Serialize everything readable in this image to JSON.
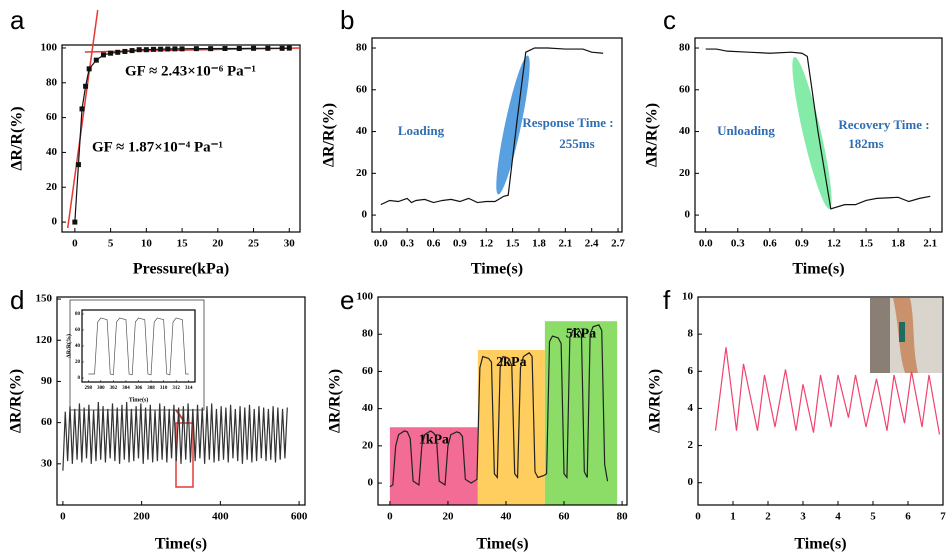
{
  "chart_data": [
    {
      "type": "line",
      "panel": "a",
      "xlabel": "Pressure(kPa)",
      "ylabel": "ΔR/R(%)",
      "color": "#111111",
      "marker": "square",
      "x": [
        0,
        0.5,
        1,
        1.5,
        2,
        3,
        4,
        5,
        6,
        7,
        8,
        9,
        10,
        11,
        12,
        13,
        14,
        15,
        17,
        19,
        21,
        23,
        25,
        27,
        29,
        30
      ],
      "values": [
        0,
        33,
        65,
        78,
        88,
        93,
        96,
        97,
        97.5,
        98,
        98.5,
        99,
        99,
        99.2,
        99.3,
        99.4,
        99.5,
        99.5,
        99.6,
        99.6,
        99.7,
        99.7,
        99.8,
        99.8,
        99.8,
        99.9
      ],
      "fits": [
        {
          "color": "#e53935",
          "x": [
            -1,
            3.2
          ],
          "values": [
            -3.4,
            121.8
          ]
        },
        {
          "color": "#e53935",
          "x": [
            1.4,
            31.5
          ],
          "values": [
            97.7,
            100
          ]
        }
      ],
      "annotations": [
        "GF ≈ 2.43×10⁻⁶ Pa⁻¹",
        "GF ≈ 1.87×10⁻⁴ Pa⁻¹"
      ],
      "xlim": [
        -1.8,
        31.5
      ],
      "ylim": [
        -5.7,
        101.7
      ],
      "xticks": [
        0,
        5,
        10,
        15,
        20,
        25,
        30
      ],
      "yticks": [
        0,
        20,
        40,
        60,
        80,
        100
      ]
    },
    {
      "type": "line",
      "panel": "b",
      "xlabel": "Time(s)",
      "ylabel": "ΔR/R(%)",
      "color": "#111111",
      "annotation_color": "#2f6eb5",
      "x": [
        0.0,
        0.1,
        0.2,
        0.3,
        0.35,
        0.4,
        0.5,
        0.6,
        0.7,
        0.8,
        0.9,
        1.0,
        1.1,
        1.2,
        1.3,
        1.4,
        1.45,
        1.55,
        1.65,
        1.75,
        1.9,
        2.1,
        2.3,
        2.4,
        2.53
      ],
      "values": [
        5,
        7,
        6.5,
        8,
        6,
        7,
        7.5,
        6,
        7,
        7.5,
        6.5,
        8,
        6,
        6.5,
        6.5,
        9,
        9.5,
        45,
        78,
        80,
        80,
        79.5,
        79.5,
        78,
        77.5
      ],
      "annotations": [
        "Loading",
        "Response Time :",
        "255ms"
      ],
      "xlim": [
        -0.1,
        2.745
      ],
      "ylim": [
        -8.1,
        84.8
      ],
      "xticks": [
        {
          "value": 0,
          "label": "0.0"
        },
        0.3,
        0.6,
        0.9,
        1.2,
        1.5,
        1.8,
        2.1,
        2.4,
        2.7
      ],
      "yticks": [
        0,
        20,
        40,
        60,
        80
      ]
    },
    {
      "type": "line",
      "panel": "c",
      "xlabel": "Time(s)",
      "ylabel": "ΔR/R(%)",
      "color": "#111111",
      "annotation_color": "#2f6eb5",
      "x": [
        0,
        0.1,
        0.2,
        0.4,
        0.6,
        0.8,
        0.9,
        0.95,
        1.05,
        1.17,
        1.3,
        1.4,
        1.5,
        1.6,
        1.8,
        1.9,
        2.0,
        2.1
      ],
      "values": [
        79.5,
        79.5,
        78.5,
        78,
        77.5,
        78,
        77.5,
        76,
        40,
        3,
        5,
        5,
        7,
        8,
        8.5,
        6.5,
        8,
        9
      ],
      "annotations": [
        "Unloading",
        "Recovery Time :",
        "182ms"
      ],
      "xlim": [
        -0.1,
        2.21
      ],
      "ylim": [
        -8.1,
        84.8
      ],
      "xticks": [
        {
          "value": 0,
          "label": "0.0"
        },
        0.3,
        0.6,
        0.9,
        1.2,
        1.5,
        1.8,
        2.1
      ],
      "yticks": [
        0,
        20,
        40,
        60,
        80
      ]
    },
    {
      "type": "line",
      "panel": "d",
      "xlabel": "Time(s)",
      "ylabel": "ΔR/R(%)",
      "color": "#333333",
      "x": [
        0,
        6,
        12,
        18,
        24,
        30,
        36,
        42,
        48,
        54,
        60,
        66,
        72,
        78,
        84,
        90,
        96,
        102,
        108,
        114,
        120,
        126,
        132,
        138,
        144,
        150,
        156,
        162,
        168,
        174,
        180,
        186,
        192,
        198,
        204,
        210,
        216,
        222,
        228,
        234,
        240,
        246,
        252,
        258,
        264,
        270,
        276,
        282,
        288,
        294,
        300,
        306,
        312,
        318,
        324,
        330,
        336,
        342,
        348,
        354,
        360,
        366,
        372,
        378,
        384,
        390,
        396,
        402,
        408,
        414,
        420,
        426,
        432,
        438,
        444,
        450,
        456,
        462,
        468,
        474,
        480,
        486,
        492,
        498,
        504,
        510,
        516,
        522,
        528,
        534,
        540,
        546,
        552,
        558,
        564,
        570
      ],
      "values": [
        25,
        68,
        32,
        72,
        30,
        70,
        33,
        74,
        31,
        71,
        34,
        73,
        30,
        69,
        32,
        75,
        33,
        72,
        31,
        70,
        34,
        74,
        32,
        71,
        30,
        73,
        33,
        75,
        31,
        70,
        32,
        72,
        34,
        74,
        30,
        71,
        33,
        73,
        31,
        69,
        32,
        74,
        33,
        72,
        31,
        70,
        34,
        73,
        32,
        71,
        30,
        72,
        33,
        74,
        31,
        70,
        32,
        73,
        34,
        71,
        30,
        72,
        33,
        74,
        31,
        70,
        32,
        72,
        33,
        71,
        31,
        73,
        34,
        70,
        32,
        72,
        30,
        71,
        33,
        73,
        31,
        70,
        32,
        72,
        34,
        71,
        32,
        70,
        33,
        72,
        31,
        71,
        33,
        70,
        34,
        71
      ],
      "xlim": [
        -15,
        615
      ],
      "ylim": [
        0,
        151.5
      ],
      "xticks": [
        0,
        200,
        400,
        600
      ],
      "yticks": [
        30,
        60,
        90,
        120,
        150
      ]
    },
    {
      "type": "line",
      "xlabel": "Time(s)",
      "ylabel": "ΔR/R(%)",
      "color": "#555555",
      "x": [
        298,
        299,
        299.5,
        300,
        301,
        301.5,
        302,
        302.5,
        303,
        304,
        304.5,
        305,
        305.5,
        306,
        307,
        307.5,
        308,
        308.5,
        309,
        310,
        310.5,
        311,
        311.5,
        312,
        313,
        313.5,
        314
      ],
      "values": [
        5,
        5,
        70,
        75,
        73,
        5,
        4,
        70,
        75,
        73,
        5,
        4,
        70,
        75,
        73,
        5,
        4,
        70,
        75,
        73,
        5,
        4,
        70,
        75,
        73,
        5,
        5
      ],
      "xlim": [
        297,
        315
      ],
      "ylim": [
        -5,
        85
      ],
      "xticks": [
        298,
        300,
        302,
        304,
        306,
        308,
        310,
        312,
        314
      ],
      "yticks": [
        0,
        20,
        40,
        60,
        80
      ]
    },
    {
      "type": "line",
      "panel": "e",
      "xlabel": "Time(s)",
      "ylabel": "ΔR/R(%)",
      "color": "#222222",
      "bands": [
        {
          "label": "1kPa",
          "color": "#f25c8a",
          "x": [
            0,
            30.3
          ],
          "top": 30
        },
        {
          "label": "2kPa",
          "color": "#ffc94d",
          "x": [
            30.3,
            53.4
          ],
          "top": 71.5
        },
        {
          "label": "5kPa",
          "color": "#7ed957",
          "x": [
            53.4,
            78.3
          ],
          "top": 87
        }
      ],
      "x": [
        0,
        1,
        2,
        3,
        5,
        6,
        7,
        8,
        10,
        11,
        12,
        14,
        15,
        16,
        17,
        19,
        20,
        21,
        23,
        24,
        25,
        26,
        28,
        30,
        31,
        32,
        34,
        35,
        36,
        37,
        38,
        39,
        41,
        42,
        43,
        44,
        45,
        46,
        48,
        49,
        50,
        51,
        53,
        54,
        55,
        56,
        58,
        59,
        60,
        61,
        62,
        63,
        65,
        66,
        67,
        68,
        69,
        70,
        72,
        73,
        74,
        75
      ],
      "values": [
        -2,
        -1,
        20,
        26,
        28,
        27.5,
        24,
        1,
        -1,
        20,
        26,
        28,
        27,
        25,
        1,
        -1,
        20,
        26,
        27.5,
        27,
        25,
        2,
        0,
        2,
        62,
        68,
        67,
        65,
        5,
        3,
        62,
        68,
        67,
        63,
        5,
        3,
        62,
        68,
        70,
        68,
        6,
        3,
        4,
        5,
        76,
        79,
        78,
        75,
        5,
        3,
        78,
        82,
        83,
        80,
        6,
        3,
        80,
        84,
        85,
        82,
        10,
        1
      ],
      "xlim": [
        -4.1,
        81.7
      ],
      "ylim": [
        -11.8,
        100
      ],
      "xticks": [
        0,
        20,
        40,
        60,
        80
      ],
      "yticks": [
        0,
        20,
        40,
        60,
        80,
        100
      ]
    },
    {
      "type": "line",
      "panel": "f",
      "xlabel": "Time(s)",
      "ylabel": "ΔR/R(%)",
      "color": "#f0436e",
      "x": [
        0.5,
        0.8,
        1.1,
        1.3,
        1.7,
        1.9,
        2.2,
        2.5,
        2.8,
        3.0,
        3.3,
        3.5,
        3.8,
        4.0,
        4.3,
        4.5,
        4.8,
        5.1,
        5.4,
        5.6,
        5.9,
        6.1,
        6.4,
        6.6,
        6.9
      ],
      "values": [
        2.8,
        7.3,
        2.8,
        6.4,
        2.8,
        5.8,
        3.0,
        6.1,
        2.8,
        5.3,
        2.7,
        5.8,
        3.0,
        5.8,
        3.5,
        5.8,
        3.0,
        5.6,
        2.8,
        5.8,
        3.2,
        6.0,
        3.0,
        5.8,
        2.6
      ],
      "xlim": [
        0,
        7
      ],
      "ylim": [
        -1.2,
        10
      ],
      "xticks": [
        0,
        1,
        2,
        3,
        4,
        5,
        6,
        7
      ],
      "yticks": [
        0,
        2,
        4,
        6,
        8,
        10
      ]
    }
  ]
}
